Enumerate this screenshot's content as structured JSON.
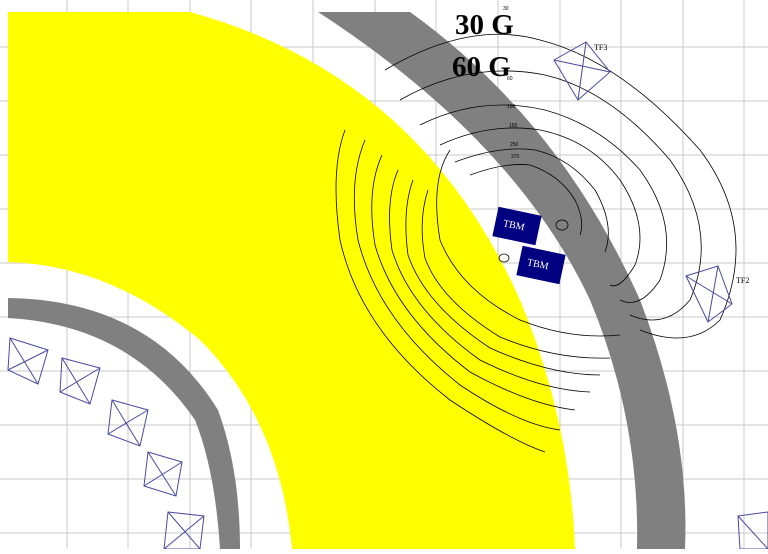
{
  "figure": {
    "field_labels": [
      "30 G",
      "60 G"
    ],
    "contour_values": [
      "30",
      "60",
      "100",
      "150",
      "250",
      "370"
    ],
    "tbm_label": "TBM",
    "tf_coils": [
      "TF3",
      "TF2"
    ],
    "colors": {
      "plasma_region": "#ffff00",
      "vessel_wall": "#808080",
      "tbm_module": "#000080",
      "grid": "#c8c8c8",
      "contour": "#000000",
      "coil_outline": "#4a4aa0"
    }
  }
}
